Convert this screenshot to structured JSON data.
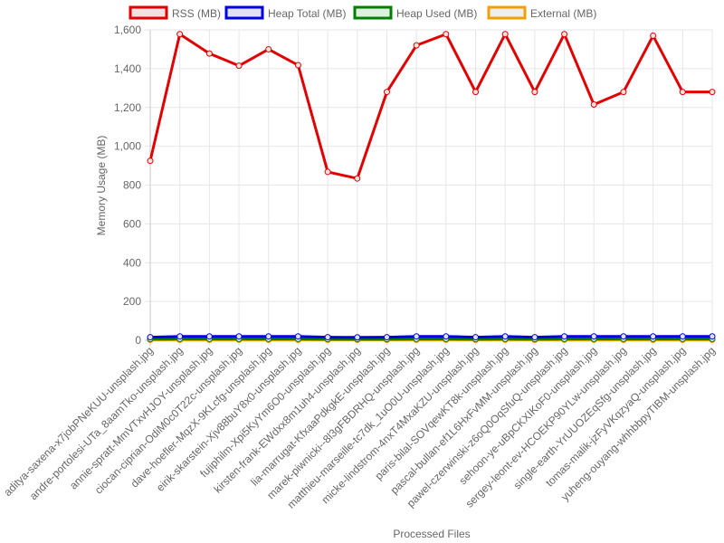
{
  "chart_data": {
    "type": "line",
    "title": "",
    "xlabel": "Processed Files",
    "ylabel": "Memory Usage (MB)",
    "ylim": [
      0,
      1600
    ],
    "yticks": [
      "0",
      "200",
      "400",
      "600",
      "800",
      "1,000",
      "1,200",
      "1,400",
      "1,600"
    ],
    "grid": true,
    "legend_position": "top",
    "categories": [
      "aditya-saxena-x7jobPNeKUU-unsplash.jpg",
      "andre-portolesi-UTa_8aamTko-unsplash.jpg",
      "annie-spratt-MmVTxvHJOY-unsplash.jpg",
      "ciocan-ciprian-OdiM0c0T22c-unsplash.jpg",
      "dave-hoefler-MqzX-9KLcfg-unsplash.jpg",
      "eirik-skarstein-Xjv88buY8x0-unsplash.jpg",
      "fujiphilm-Xpi5KyYm6O0-unsplash.jpg",
      "kirsten-frank-EWdxx8m1uh4-unsplash.jpg",
      "lia-marrugat-KfxaaPdkgkE-unsplash.jpg",
      "marek-piwnicki--8l3gFBDRHQ-unsplash.jpg",
      "matthieu-marseille-tc7dk_1uO0U-unsplash.jpg",
      "micke-lindstrom-4nxT4MxaKZU-unsplash.jpg",
      "paris-bilal-SOVqewKT8k-unsplash.jpg",
      "pascal-bullan-ef1L6HxFvMM-unsplash.jpg",
      "pawel-czerwinski-z6oQ0OqSfuQ-unsplash.jpg",
      "sehoon-ye-uBpCKXIKoF0-unsplash.jpg",
      "sergey-leont-ev-HCOEKP90YLw-unsplash.jpg",
      "single-earth-YrUUOZEqSfg-unsplash.jpg",
      "tomas-malik-jzFyVKqzyaQ-unsplash.jpg",
      "yuheng-ouyang-whhbbpyTIBM-unsplash.jpg"
    ],
    "series": [
      {
        "name": "RSS (MB)",
        "color": "#e00000",
        "fill": "#f0e0e0",
        "values": [
          925,
          1578,
          1478,
          1415,
          1500,
          1418,
          868,
          834,
          1280,
          1520,
          1578,
          1280,
          1578,
          1280,
          1578,
          1215,
          1280,
          1570,
          1280,
          1280
        ]
      },
      {
        "name": "Heap Total (MB)",
        "color": "#0000e0",
        "fill": "#e0e0f0",
        "values": [
          16,
          20,
          20,
          20,
          20,
          20,
          16,
          15,
          16,
          20,
          20,
          16,
          20,
          16,
          20,
          20,
          20,
          20,
          20,
          20
        ]
      },
      {
        "name": "Heap Used (MB)",
        "color": "#008000",
        "fill": "#e0f0e0",
        "values": [
          6,
          7,
          7,
          7,
          7,
          7,
          6,
          6,
          6,
          7,
          7,
          6,
          7,
          6,
          7,
          7,
          7,
          7,
          7,
          7
        ]
      },
      {
        "name": "External (MB)",
        "color": "#f0a000",
        "fill": "#eeeeee",
        "values": [
          2,
          2,
          2,
          2,
          2,
          2,
          2,
          2,
          2,
          2,
          2,
          2,
          2,
          2,
          2,
          2,
          2,
          2,
          2,
          2
        ]
      }
    ]
  }
}
